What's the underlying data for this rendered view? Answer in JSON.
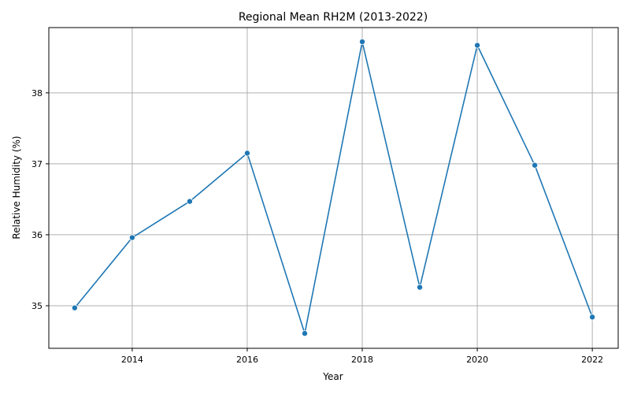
{
  "chart_data": {
    "type": "line",
    "title": "Regional Mean RH2M (2013-2022)",
    "xlabel": "Year",
    "ylabel": "Relative Humidity (%)",
    "x": [
      2013,
      2014,
      2015,
      2016,
      2017,
      2018,
      2019,
      2020,
      2021,
      2022
    ],
    "series": [
      {
        "values": [
          34.97,
          35.96,
          36.47,
          37.15,
          34.61,
          38.72,
          35.26,
          38.67,
          36.98,
          34.84
        ],
        "color": "#1f77b4",
        "marker": "circle"
      }
    ],
    "xlim": [
      2012.55,
      2022.45
    ],
    "ylim": [
      34.4,
      38.92
    ],
    "xticks": [
      2014,
      2016,
      2018,
      2020,
      2022
    ],
    "yticks": [
      35,
      36,
      37,
      38
    ],
    "grid": true,
    "legend": "none"
  },
  "colors": {
    "line": "#1f77b4",
    "grid": "#b0b0b0",
    "axes": "#000000",
    "background": "#ffffff"
  }
}
